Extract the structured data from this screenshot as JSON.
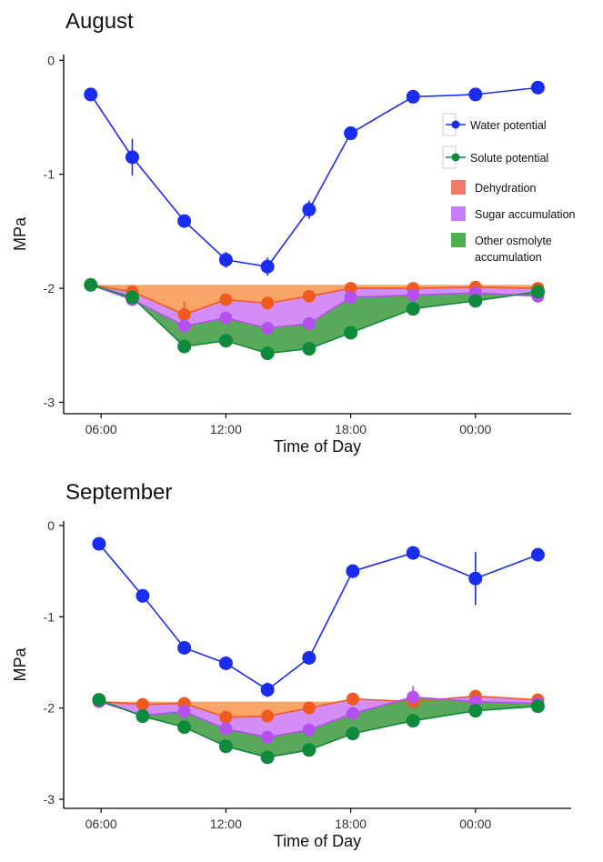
{
  "colors": {
    "water": "#1a2cf0",
    "solute": "#0d8a3c",
    "dehydration": "#f37a6a",
    "sugar": "#c77bff",
    "other": "#4caf50",
    "dehydration_fill": "#f9a56a",
    "sugar_fill": "#d48cf7",
    "other_fill": "#5aa85a",
    "dehydration_pt": "#f05a1e",
    "sugar_pt": "#b44ff0"
  },
  "legend": {
    "water": "Water potential",
    "solute": "Solute potential",
    "dehydration": "Dehydration",
    "sugar": "Sugar accumulation",
    "other_line1": "Other osmolyte",
    "other_line2": "accumulation"
  },
  "chart_data": [
    {
      "type": "line",
      "title": "August",
      "xlabel": "Time of Day",
      "ylabel": "MPa",
      "ylim": [
        -3.1,
        0.05
      ],
      "xlim": [
        4.2,
        28.6
      ],
      "yticks": [
        0,
        -1,
        -2,
        -3
      ],
      "ytick_labels": [
        "0",
        "-1",
        "-2",
        "-3"
      ],
      "xticks": [
        6,
        12,
        18,
        24
      ],
      "xtick_labels": [
        "06:00",
        "12:00",
        "18:00",
        "00:00"
      ],
      "grid": false,
      "legend_position": "right",
      "x": [
        5.5,
        7.5,
        10.0,
        12.0,
        14.0,
        16.0,
        18.0,
        21.0,
        24.0,
        27.0
      ],
      "series": [
        {
          "name": "Water potential",
          "values": [
            -0.3,
            -0.85,
            -1.41,
            -1.75,
            -1.81,
            -1.31,
            -0.64,
            -0.32,
            -0.3,
            -0.24
          ],
          "err": [
            0,
            0.16,
            0,
            0.07,
            0.08,
            0.08,
            0,
            0,
            0,
            0
          ]
        },
        {
          "name": "Dehydration",
          "values": [
            -1.97,
            -2.03,
            -2.23,
            -2.1,
            -2.13,
            -2.07,
            -2.0,
            -2.0,
            -1.99,
            -2.0
          ],
          "err": [
            0,
            0,
            0.11,
            0,
            0.05,
            0.04,
            0.04,
            0,
            0,
            0
          ]
        },
        {
          "name": "Sugar accumulation",
          "values": [
            -1.97,
            -2.1,
            -2.33,
            -2.26,
            -2.35,
            -2.31,
            -2.08,
            -2.06,
            -2.04,
            -2.07
          ],
          "err": [
            0,
            0,
            0,
            0,
            0,
            0,
            0,
            0,
            0,
            0
          ]
        },
        {
          "name": "Solute potential",
          "values": [
            -1.97,
            -2.08,
            -2.51,
            -2.46,
            -2.57,
            -2.53,
            -2.39,
            -2.18,
            -2.11,
            -2.03
          ],
          "err": [
            0,
            0,
            0,
            0,
            0.04,
            0.05,
            0.04,
            0,
            0,
            0
          ]
        }
      ]
    },
    {
      "type": "line",
      "title": "September",
      "xlabel": "Time of Day",
      "ylabel": "MPa",
      "ylim": [
        -3.1,
        0.05
      ],
      "xlim": [
        4.2,
        28.6
      ],
      "yticks": [
        0,
        -1,
        -2,
        -3
      ],
      "ytick_labels": [
        "0",
        "-1",
        "-2",
        "-3"
      ],
      "xticks": [
        6,
        12,
        18,
        24
      ],
      "xtick_labels": [
        "06:00",
        "12:00",
        "18:00",
        "00:00"
      ],
      "grid": false,
      "x": [
        5.9,
        8.0,
        10.0,
        12.0,
        14.0,
        16.0,
        18.1,
        21.0,
        24.0,
        27.0
      ],
      "series": [
        {
          "name": "Water potential",
          "values": [
            -0.2,
            -0.77,
            -1.34,
            -1.51,
            -1.8,
            -1.45,
            -0.5,
            -0.3,
            -0.58,
            -0.32
          ],
          "err": [
            0,
            0,
            0,
            0.07,
            0.08,
            0,
            0,
            0,
            0.29,
            0
          ]
        },
        {
          "name": "Dehydration",
          "values": [
            -1.93,
            -1.96,
            -1.95,
            -2.1,
            -2.09,
            -2.0,
            -1.9,
            -1.93,
            -1.87,
            -1.91
          ],
          "err": [
            0,
            0,
            0,
            0,
            0,
            0,
            0,
            0,
            0,
            0
          ]
        },
        {
          "name": "Sugar accumulation",
          "values": [
            -1.93,
            -2.08,
            -2.04,
            -2.23,
            -2.32,
            -2.24,
            -2.06,
            -1.88,
            -1.93,
            -1.95
          ],
          "err": [
            0,
            0.06,
            0,
            0.04,
            0,
            0,
            0,
            0.12,
            0,
            0
          ]
        },
        {
          "name": "Solute potential",
          "values": [
            -1.91,
            -2.09,
            -2.21,
            -2.42,
            -2.54,
            -2.46,
            -2.28,
            -2.14,
            -2.03,
            -1.98
          ],
          "err": [
            0,
            0,
            0,
            0,
            0,
            0,
            0,
            0,
            0,
            0
          ]
        }
      ]
    }
  ]
}
